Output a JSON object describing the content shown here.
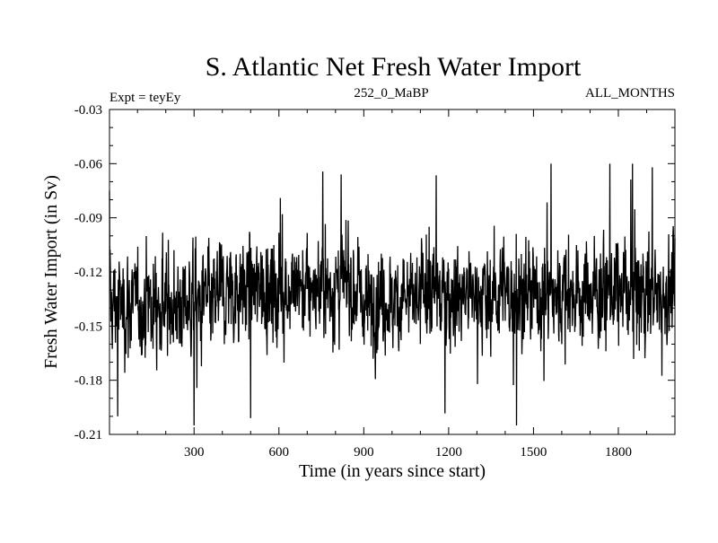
{
  "chart_data": {
    "type": "line",
    "title": "S. Atlantic Net Fresh Water Import",
    "left_label": "Expt = teyEy",
    "center_label": "252_0_MaBP",
    "right_label": "ALL_MONTHS",
    "xlabel": "Time (in years since start)",
    "ylabel": "Fresh Water Import (in Sv)",
    "xlim": [
      1,
      2000
    ],
    "ylim": [
      -0.21,
      -0.03
    ],
    "xticks": [
      300,
      600,
      900,
      1200,
      1500,
      1800
    ],
    "xtick_labels": [
      "300",
      "600",
      "900",
      "1200",
      "1500",
      "1800"
    ],
    "yticks": [
      -0.03,
      -0.06,
      -0.09,
      -0.12,
      -0.15,
      -0.18,
      -0.21
    ],
    "ytick_labels": [
      "-0.03",
      "-0.06",
      "-0.09",
      "-0.12",
      "-0.15",
      "-0.18",
      "-0.21"
    ],
    "series": [
      {
        "name": "fresh water import",
        "n_points": 2000,
        "mean": -0.133,
        "std": 0.014,
        "min": -0.205,
        "max": -0.06,
        "segment_means": [
          {
            "x_start": 1,
            "x_end": 380,
            "mean": -0.138
          },
          {
            "x_start": 380,
            "x_end": 880,
            "mean": -0.129
          },
          {
            "x_start": 880,
            "x_end": 1100,
            "mean": -0.136
          },
          {
            "x_start": 1100,
            "x_end": 1600,
            "mean": -0.132
          },
          {
            "x_start": 1600,
            "x_end": 2000,
            "mean": -0.131
          }
        ],
        "notable_points": [
          {
            "x": 1,
            "y": -0.075
          },
          {
            "x": 30,
            "y": -0.2
          },
          {
            "x": 300,
            "y": -0.205
          },
          {
            "x": 500,
            "y": -0.201
          },
          {
            "x": 820,
            "y": -0.066
          },
          {
            "x": 1440,
            "y": -0.205
          },
          {
            "x": 1770,
            "y": -0.06
          },
          {
            "x": 1850,
            "y": -0.06
          },
          {
            "x": 1920,
            "y": -0.062
          }
        ]
      }
    ]
  }
}
